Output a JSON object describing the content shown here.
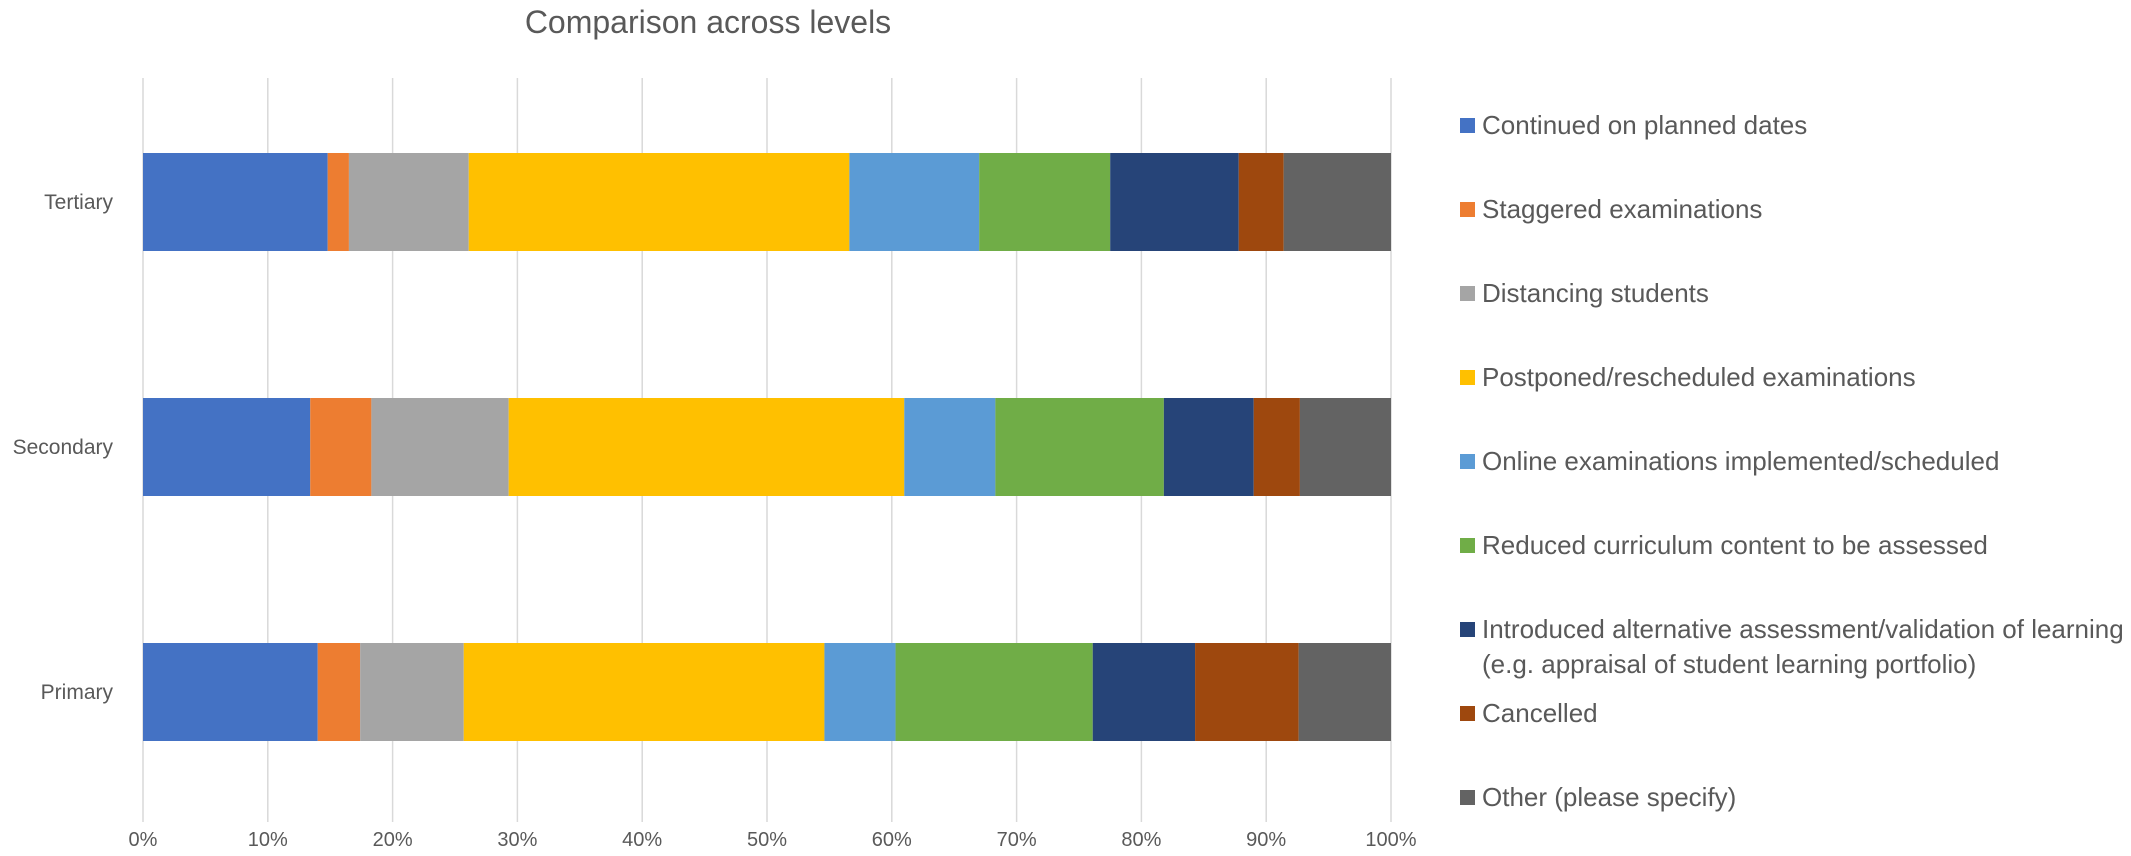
{
  "chart_data": {
    "type": "bar",
    "orientation": "horizontal",
    "stacked": "100%",
    "title": "Comparison across levels",
    "categories": [
      "Tertiary",
      "Secondary",
      "Primary"
    ],
    "x_ticks": [
      "0%",
      "10%",
      "20%",
      "30%",
      "40%",
      "50%",
      "60%",
      "70%",
      "80%",
      "90%",
      "100%"
    ],
    "xlim": [
      0,
      100
    ],
    "grid": "vertical",
    "legend_position": "right",
    "series": [
      {
        "name": "Continued on planned dates",
        "color": "#4472C4",
        "values": [
          14.8,
          13.4,
          14.0
        ]
      },
      {
        "name": "Staggered examinations",
        "color": "#ED7D31",
        "values": [
          1.7,
          4.9,
          3.4
        ]
      },
      {
        "name": "Distancing students",
        "color": "#A5A5A5",
        "values": [
          9.6,
          11.0,
          8.3
        ]
      },
      {
        "name": "Postponed/rescheduled examinations",
        "color": "#FFC000",
        "values": [
          30.5,
          31.7,
          28.9
        ]
      },
      {
        "name": "Online examinations implemented/scheduled",
        "color": "#5B9BD5",
        "values": [
          10.4,
          7.3,
          5.7
        ]
      },
      {
        "name": "Reduced curriculum content to be assessed",
        "color": "#70AD47",
        "values": [
          10.5,
          13.5,
          15.8
        ]
      },
      {
        "name": "Introduced alternative assessment/validation of learning\n(e.g. appraisal of student learning portfolio)",
        "color": "#264478",
        "values": [
          10.3,
          7.2,
          8.2
        ]
      },
      {
        "name": "Cancelled",
        "color": "#9E480E",
        "values": [
          3.6,
          3.7,
          8.3
        ]
      },
      {
        "name": "Other (please specify)",
        "color": "#636363",
        "values": [
          8.6,
          7.3,
          7.4
        ]
      }
    ]
  }
}
